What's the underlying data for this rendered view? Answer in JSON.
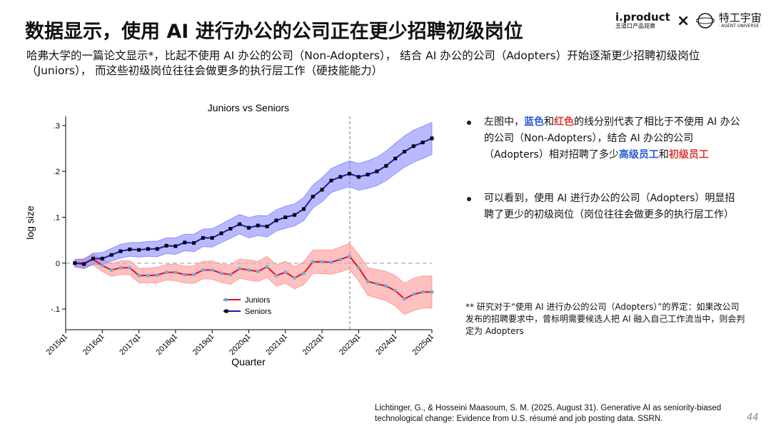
{
  "header": {
    "title": "数据显示，使用 AI 进行办公的公司正在更少招聘初级岗位",
    "subtitle": "哈弗大学的一篇论文显示*，比起不使用 AI 办公的公司（Non-Adopters），  结合 AI 办公的公司（Adopters）开始逐渐更少招聘初级岗位（Juniors），  而这些初级岗位往往会做更多的执行层工作（硬技能能力）",
    "logo_left": "i.product",
    "logo_left_sub": "五道口产品观察",
    "logo_sep": "×",
    "logo_right": "特工宇宙",
    "logo_right_sub": "· AGENT UNIVERSE ·"
  },
  "bullets": [
    [
      {
        "text": "左图中，"
      },
      {
        "text": "蓝色",
        "color": "#2a5bd7"
      },
      {
        "text": "和"
      },
      {
        "text": "红色",
        "color": "#e03a3a"
      },
      {
        "text": "的线分别代表了相比于不使用 AI 办公的公司（Non-Adopters），结合 AI 办公的公司（Adopters）相对招聘了多少"
      },
      {
        "text": "高级员工",
        "color": "#2a5bd7"
      },
      {
        "text": "和"
      },
      {
        "text": "初级员工",
        "color": "#e03a3a"
      }
    ],
    [
      {
        "text": "可以看到，使用 AI 进行办公的公司（Adopters）明显招聘了更少的初级岗位（岗位往往会做更多的执行层工作）"
      }
    ]
  ],
  "footnote": "** 研究对于“使用 AI 进行办公的公司（Adopters）”的界定：如果改公司发布的招聘要求中，曾标明需要候选人把 AI 融入自己工作流当中，则会判定为 Adopters",
  "citation": "Lichtinger, G., & Hosseini Maasoum, S. M. (2025, August 31). Generative AI as seniority-biased technological change: Evidence from U.S. résumé and job posting data. SSRN.",
  "page_number": "44",
  "chart_data": {
    "type": "line",
    "title": "Juniors vs Seniors",
    "x_label": "Quarter",
    "y_label": "log size",
    "categories": [
      "2015q1",
      null,
      null,
      null,
      "2016q1",
      null,
      null,
      null,
      "2017q1",
      null,
      null,
      null,
      "2018q1",
      null,
      null,
      null,
      "2019q1",
      null,
      null,
      null,
      "2020q1",
      null,
      null,
      null,
      "2021q1",
      null,
      null,
      null,
      "2022q1",
      null,
      null,
      null,
      "2023q1",
      null,
      null,
      null,
      "2024q1",
      null,
      null,
      null,
      "2025q1"
    ],
    "ylim": [
      -0.145,
      0.32
    ],
    "yticks": [
      {
        "value": -0.1,
        "label": "-.1"
      },
      0,
      {
        "value": 0.1,
        "label": ".1"
      },
      {
        "value": 0.2,
        "label": ".2"
      },
      {
        "value": 0.3,
        "label": ".3"
      }
    ],
    "grid": false,
    "legend": "lower-left",
    "series": [
      {
        "name": "Juniors",
        "color": "#e8101a",
        "marker_color": "#6aaee0",
        "band_color": "#ff8c8c",
        "values": [
          null,
          0,
          0,
          0.008,
          -0.005,
          -0.015,
          -0.01,
          -0.01,
          -0.027,
          -0.027,
          -0.026,
          -0.02,
          -0.02,
          -0.025,
          -0.025,
          -0.015,
          -0.015,
          -0.022,
          -0.025,
          -0.012,
          -0.015,
          -0.018,
          -0.008,
          -0.027,
          -0.02,
          -0.032,
          -0.022,
          0.003,
          0.003,
          0.002,
          0.008,
          0.015,
          -0.01,
          -0.04,
          -0.045,
          -0.05,
          -0.06,
          -0.078,
          -0.068,
          -0.063,
          -0.063
        ],
        "errors": [
          null,
          0.008,
          0.01,
          0.012,
          0.013,
          0.014,
          0.015,
          0.015,
          0.016,
          0.016,
          0.017,
          0.017,
          0.018,
          0.018,
          0.019,
          0.019,
          0.02,
          0.02,
          0.021,
          0.021,
          0.022,
          0.022,
          0.023,
          0.023,
          0.024,
          0.024,
          0.025,
          0.025,
          0.026,
          0.026,
          0.027,
          0.028,
          0.029,
          0.03,
          0.031,
          0.032,
          0.033,
          0.034,
          0.035,
          0.035,
          0.035
        ]
      },
      {
        "name": "Seniors",
        "color": "#1a1aa8",
        "marker_color": "#000000",
        "band_color": "#8080ff",
        "values": [
          null,
          0,
          -0.002,
          0.01,
          0.01,
          0.018,
          0.026,
          0.03,
          0.029,
          0.031,
          0.031,
          0.038,
          0.037,
          0.045,
          0.044,
          0.055,
          0.055,
          0.065,
          0.075,
          0.085,
          0.077,
          0.082,
          0.08,
          0.093,
          0.1,
          0.105,
          0.118,
          0.145,
          0.16,
          0.18,
          0.188,
          0.195,
          0.188,
          0.193,
          0.2,
          0.212,
          0.228,
          0.243,
          0.255,
          0.263,
          0.272
        ],
        "errors": [
          null,
          0.008,
          0.01,
          0.012,
          0.013,
          0.014,
          0.015,
          0.015,
          0.016,
          0.016,
          0.017,
          0.017,
          0.018,
          0.018,
          0.019,
          0.019,
          0.02,
          0.02,
          0.021,
          0.021,
          0.022,
          0.022,
          0.023,
          0.023,
          0.024,
          0.024,
          0.025,
          0.025,
          0.026,
          0.026,
          0.027,
          0.028,
          0.029,
          0.03,
          0.031,
          0.032,
          0.033,
          0.034,
          0.035,
          0.035,
          0.035
        ]
      }
    ]
  }
}
